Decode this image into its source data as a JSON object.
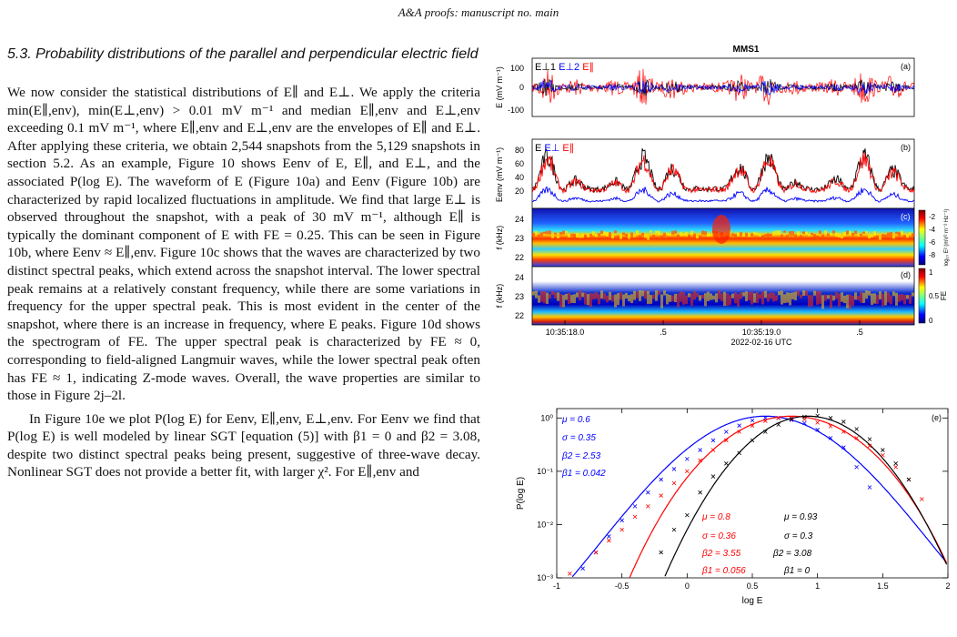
{
  "header": {
    "journal": "A&A proofs:",
    "manuscript": "manuscript no. main"
  },
  "section": {
    "title": "5.3. Probability distributions of the parallel and perpendicular electric field"
  },
  "paragraphs": [
    "We now consider the statistical distributions of E∥ and E⊥. We apply the criteria min(E∥,env), min(E⊥,env) > 0.01 mV m⁻¹ and median E∥,env and E⊥,env exceeding 0.1 mV m⁻¹, where E∥,env and E⊥,env are the envelopes of E∥ and E⊥. After applying these criteria, we obtain 2,544 snapshots from the 5,129 snapshots in section 5.2. As an example, Figure 10 shows Eenv of E, E∥, and E⊥, and the associated P(log E). The waveform of E (Figure 10a) and Eenv (Figure 10b) are characterized by rapid localized fluctuations in amplitude. We find that large E⊥ is observed throughout the snapshot, with a peak of 30 mV m⁻¹, although E∥ is typically the dominant component of E with FE = 0.25. This can be seen in Figure 10b, where Eenv ≈ E∥,env. Figure 10c shows that the waves are characterized by two distinct spectral peaks, which extend across the snapshot interval. The lower spectral peak remains at a relatively constant frequency, while there are some variations in frequency for the upper spectral peak. This is most evident in the center of the snapshot, where there is an increase in frequency, where E peaks. Figure 10d shows the spectrogram of FE. The upper spectral peak is characterized by FE ≈ 0, corresponding to field-aligned Langmuir waves, while the lower spectral peak often has FE ≈ 1, indicating Z-mode waves. Overall, the wave properties are similar to those in Figure 2j–2l.",
    "In Figure 10e we plot P(log E) for Eenv, E∥,env, E⊥,env. For Eenv we find that P(log E) is well modeled by linear SGT [equation (5)] with β1 = 0 and β2 = 3.08, despite two distinct spectral peaks being present, suggestive of three-wave decay. Nonlinear SGT does not provide a better fit, with larger χ². For E∥,env and"
  ],
  "figure": {
    "title": "MMS1",
    "colors": {
      "perp1": "#000000",
      "perp2": "#0000ff",
      "par": "#ff0000"
    },
    "panel_a": {
      "label": "(a)",
      "ylabel": "E (mV m⁻¹)",
      "yticks": [
        "100",
        "0",
        "-100"
      ],
      "legend": [
        "E⊥1",
        "E⊥2",
        "E∥"
      ]
    },
    "panel_b": {
      "label": "(b)",
      "ylabel": "Eenv (mV m⁻¹)",
      "yticks": [
        "80",
        "60",
        "40",
        "20"
      ],
      "legend": [
        "E",
        "E⊥",
        "E∥"
      ]
    },
    "panel_c": {
      "label": "(c)",
      "ylabel": "f (kHz)",
      "yticks": [
        "24",
        "23",
        "22"
      ],
      "cbar_ticks": [
        "-2",
        "-4",
        "-6",
        "-8"
      ],
      "cbar_label": "log₁₀ E² (mV² m⁻² Hz⁻¹)"
    },
    "panel_d": {
      "label": "(d)",
      "ylabel": "f (kHz)",
      "yticks": [
        "24",
        "23",
        "22"
      ],
      "cbar_ticks": [
        "1",
        "0.5",
        "0"
      ],
      "cbar_label": "FE"
    },
    "time_axis": {
      "ticks": [
        "10:35:18.0",
        ".5",
        "10:35:19.0",
        ".5"
      ],
      "date": "2022-02-16 UTC"
    },
    "panel_e": {
      "label": "(e)",
      "ylabel": "P(log E)",
      "xlabel": "log E",
      "xticks": [
        "-1",
        "-0.5",
        "0",
        "0.5",
        "1",
        "1.5",
        "2"
      ],
      "yticks": [
        "10⁰",
        "10⁻¹",
        "10⁻²",
        "10⁻³"
      ],
      "stats": {
        "perp": {
          "mu": "μ = 0.6",
          "sigma": "σ = 0.35",
          "beta2": "β2 = 2.53",
          "beta1": "β1 = 0.042"
        },
        "par": {
          "mu": "μ = 0.8",
          "sigma": "σ = 0.36",
          "beta2": "β2 = 3.55",
          "beta1": "β1 = 0.056"
        },
        "total": {
          "mu": "μ = 0.93",
          "sigma": "σ = 0.3",
          "beta2": "β2 = 3.08",
          "beta1": "β1 = 0"
        }
      }
    }
  },
  "chart_data": {
    "type": "scatter",
    "title": "",
    "xlabel": "log E",
    "ylabel": "P(log E)",
    "xlim": [
      -1,
      2
    ],
    "ylim": [
      0.001,
      1.5
    ],
    "yscale": "log",
    "series": [
      {
        "name": "E⊥,env",
        "color": "#0000ff",
        "fit": {
          "mu": 0.6,
          "sigma": 0.35,
          "beta1": 0.042,
          "beta2": 2.53
        },
        "x": [
          -0.8,
          -0.7,
          -0.6,
          -0.5,
          -0.4,
          -0.3,
          -0.2,
          -0.1,
          0.0,
          0.1,
          0.2,
          0.3,
          0.4,
          0.5,
          0.6,
          0.7,
          0.8,
          0.9,
          1.0,
          1.1,
          1.2,
          1.3,
          1.4
        ],
        "y": [
          0.0015,
          0.003,
          0.006,
          0.012,
          0.022,
          0.04,
          0.07,
          0.11,
          0.17,
          0.25,
          0.38,
          0.55,
          0.72,
          0.9,
          1.0,
          1.0,
          0.92,
          0.8,
          0.6,
          0.42,
          0.28,
          0.12,
          0.05
        ]
      },
      {
        "name": "E∥,env",
        "color": "#ff0000",
        "fit": {
          "mu": 0.8,
          "sigma": 0.36,
          "beta1": 0.056,
          "beta2": 3.55
        },
        "x": [
          -0.9,
          -0.7,
          -0.6,
          -0.5,
          -0.4,
          -0.3,
          -0.2,
          -0.1,
          0.0,
          0.1,
          0.2,
          0.3,
          0.4,
          0.5,
          0.6,
          0.7,
          0.8,
          0.9,
          1.0,
          1.1,
          1.2,
          1.3,
          1.4,
          1.5,
          1.6,
          1.7,
          1.8
        ],
        "y": [
          0.0012,
          0.003,
          0.005,
          0.008,
          0.014,
          0.022,
          0.035,
          0.06,
          0.1,
          0.16,
          0.25,
          0.38,
          0.55,
          0.72,
          0.88,
          1.0,
          1.0,
          0.95,
          0.82,
          0.7,
          0.55,
          0.42,
          0.3,
          0.2,
          0.12,
          0.07,
          0.03
        ]
      },
      {
        "name": "Eenv",
        "color": "#000000",
        "fit": {
          "mu": 0.93,
          "sigma": 0.3,
          "beta1": 0,
          "beta2": 3.08
        },
        "x": [
          -0.2,
          -0.1,
          0.0,
          0.1,
          0.2,
          0.3,
          0.4,
          0.5,
          0.6,
          0.7,
          0.8,
          0.9,
          1.0,
          1.1,
          1.2,
          1.3,
          1.4,
          1.5,
          1.6,
          1.7
        ],
        "y": [
          0.003,
          0.008,
          0.015,
          0.04,
          0.08,
          0.14,
          0.22,
          0.38,
          0.55,
          0.75,
          0.95,
          1.05,
          1.1,
          1.0,
          0.85,
          0.62,
          0.4,
          0.25,
          0.14,
          0.07
        ]
      }
    ]
  }
}
